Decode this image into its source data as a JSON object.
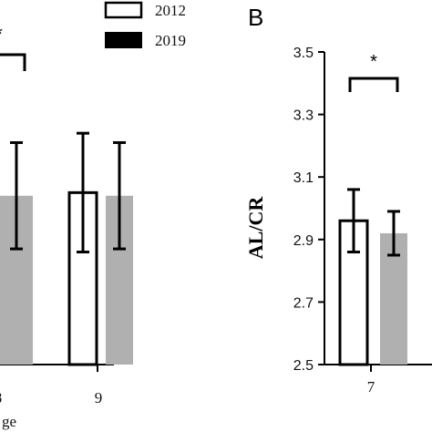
{
  "legend": {
    "items": [
      {
        "label": "2012",
        "fill": "#ffffff",
        "stroke": "#000000"
      },
      {
        "label": "2019",
        "fill": "#000000",
        "stroke": "#000000"
      }
    ]
  },
  "panel_a": {
    "xlabel_fragment": "ge",
    "tick_fragment": "8",
    "star_fragment": "*"
  },
  "panel_b": {
    "letter": "B",
    "ylabel": "AL/CR",
    "significance": "*"
  },
  "colors": {
    "bar_2012": "#ffffff",
    "bar_2019": "#b0b0b0",
    "axis": "#000000"
  },
  "chart_data": [
    {
      "type": "bar",
      "panel": "A (partially visible)",
      "categories": [
        "8",
        "9"
      ],
      "series": [
        {
          "name": "2012",
          "values": [
            null,
            3.05
          ],
          "error": [
            null,
            0.19
          ]
        },
        {
          "name": "2019",
          "values": [
            3.04,
            3.04
          ],
          "error": [
            0.17,
            0.17
          ]
        }
      ],
      "visible_tick_labels": [
        "9"
      ]
    },
    {
      "type": "bar",
      "panel": "B",
      "ylabel": "AL/CR",
      "ylim": [
        2.5,
        3.5
      ],
      "yticks": [
        "2.5",
        "2.7",
        "2.9",
        "3.1",
        "3.3",
        "3.5"
      ],
      "categories": [
        "7"
      ],
      "series": [
        {
          "name": "2012",
          "values": [
            2.96
          ],
          "error": [
            0.1
          ]
        },
        {
          "name": "2019",
          "values": [
            2.92
          ],
          "error": [
            0.07
          ]
        }
      ],
      "significance": [
        {
          "between": [
            "2012",
            "2019"
          ],
          "label": "*"
        }
      ]
    }
  ]
}
